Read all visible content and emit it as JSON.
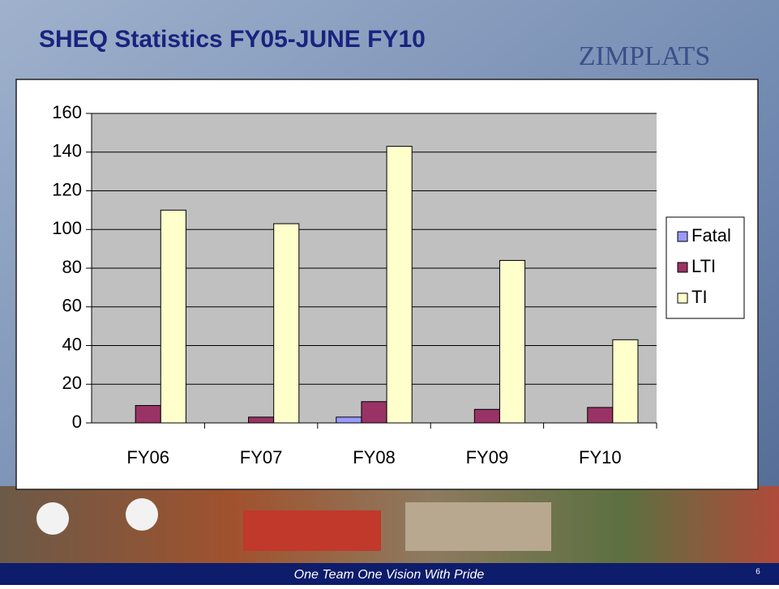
{
  "slide": {
    "title": "SHEQ Statistics FY05-JUNE FY10",
    "logo": "ZIMPLATS",
    "footer": "One Team One Vision With Pride",
    "page_number": "6"
  },
  "chart_data": {
    "type": "bar",
    "categories": [
      "FY06",
      "FY07",
      "FY08",
      "FY09",
      "FY10"
    ],
    "series": [
      {
        "name": "Fatal",
        "color": "#9999ff",
        "values": [
          0,
          0,
          3,
          0,
          0
        ]
      },
      {
        "name": "LTI",
        "color": "#993366",
        "values": [
          9,
          3,
          11,
          7,
          8
        ]
      },
      {
        "name": "TI",
        "color": "#ffffcc",
        "values": [
          110,
          103,
          143,
          84,
          43
        ]
      }
    ],
    "ylim": [
      0,
      160
    ],
    "yticks": [
      0,
      20,
      40,
      60,
      80,
      100,
      120,
      140,
      160
    ],
    "grid": true,
    "legend": "right",
    "plot_background": "#c0c0c0"
  }
}
